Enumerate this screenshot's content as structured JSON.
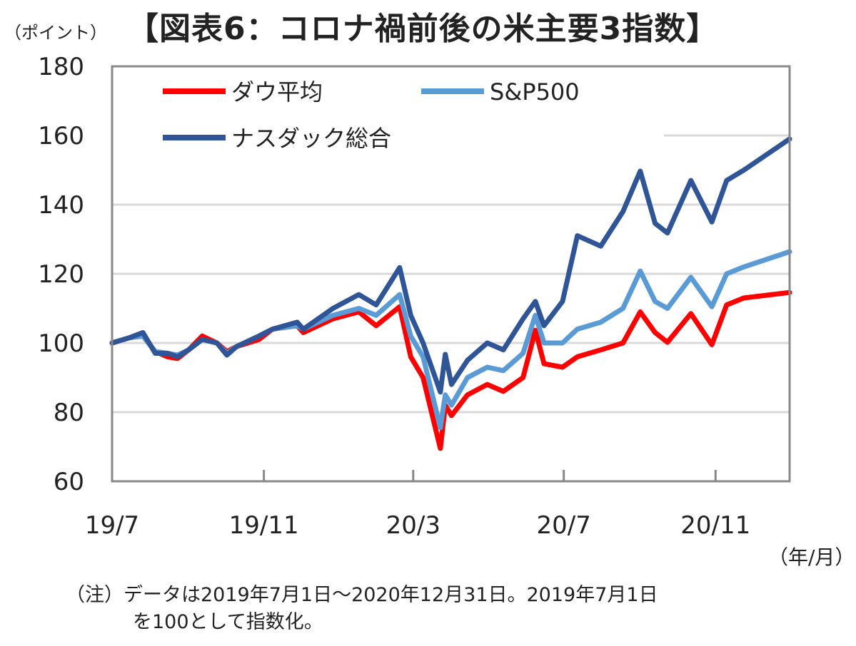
{
  "chart_data": {
    "type": "line",
    "title": "【図表6：コロナ禍前後の米主要3指数】",
    "ylabel": "（ポイント）",
    "xlabel": "（年/月）",
    "ylim": [
      60,
      180
    ],
    "yticks": [
      "60",
      "80",
      "100",
      "120",
      "140",
      "160",
      "180"
    ],
    "xlim": [
      "2019-07-01",
      "2020-12-31"
    ],
    "xticks": [
      {
        "label": "19/7",
        "date": "2019-07-01"
      },
      {
        "label": "19/11",
        "date": "2019-11-01"
      },
      {
        "label": "20/3",
        "date": "2020-03-01"
      },
      {
        "label": "20/7",
        "date": "2020-07-01"
      },
      {
        "label": "20/11",
        "date": "2020-11-01"
      }
    ],
    "grid": true,
    "legend": "top-left",
    "x": [
      "2019-07-01",
      "2019-07-15",
      "2019-07-26",
      "2019-08-05",
      "2019-08-15",
      "2019-08-23",
      "2019-09-01",
      "2019-09-12",
      "2019-09-24",
      "2019-10-02",
      "2019-10-10",
      "2019-10-28",
      "2019-11-08",
      "2019-11-28",
      "2019-12-03",
      "2019-12-27",
      "2020-01-17",
      "2020-01-31",
      "2020-02-19",
      "2020-02-28",
      "2020-03-09",
      "2020-03-23",
      "2020-03-27",
      "2020-04-01",
      "2020-04-14",
      "2020-04-30",
      "2020-05-13",
      "2020-05-29",
      "2020-06-08",
      "2020-06-15",
      "2020-06-30",
      "2020-07-12",
      "2020-07-31",
      "2020-08-18",
      "2020-09-01",
      "2020-09-13",
      "2020-09-23",
      "2020-10-12",
      "2020-10-29",
      "2020-11-10",
      "2020-11-24",
      "2020-12-31"
    ],
    "series": [
      {
        "name": "ダウ平均",
        "color": "#ff0000",
        "values": [
          100,
          101.5,
          102,
          97.5,
          96,
          95.5,
          98,
          102,
          100,
          97.5,
          99,
          101,
          104,
          105,
          103,
          107,
          109,
          105,
          110.5,
          96,
          90,
          69.5,
          82,
          79,
          85,
          88,
          86,
          90,
          103.7,
          94,
          93,
          96,
          98,
          100,
          109,
          103,
          100.2,
          108.5,
          99.5,
          111,
          113,
          114.6
        ]
      },
      {
        "name": "S&P500",
        "color": "#5b9bd5",
        "values": [
          100,
          101.5,
          102,
          97.5,
          97,
          96.5,
          98,
          101,
          100,
          97,
          99,
          102,
          104,
          105,
          104,
          108,
          110,
          108,
          114,
          102,
          96,
          75.5,
          85,
          82,
          90,
          93,
          92,
          97,
          108,
          100,
          100,
          104,
          106,
          110,
          120.8,
          112,
          110,
          119,
          110.5,
          120,
          122,
          126.4
        ]
      },
      {
        "name": "ナスダック総合",
        "color": "#2f5597",
        "values": [
          100,
          101.5,
          103,
          97,
          97,
          96,
          98,
          101,
          100,
          96.5,
          99,
          102,
          104,
          106,
          104,
          110,
          114,
          111,
          121.8,
          108,
          100,
          85.8,
          96.7,
          88,
          95,
          100,
          98,
          107,
          112,
          105,
          112,
          131,
          128,
          138,
          149.7,
          134.6,
          131.8,
          147,
          135,
          147,
          150,
          159
        ]
      }
    ]
  },
  "note": {
    "line1": "（注）データは2019年7月1日～2020年12月31日。2019年7月1日",
    "line2": "を100として指数化。"
  }
}
